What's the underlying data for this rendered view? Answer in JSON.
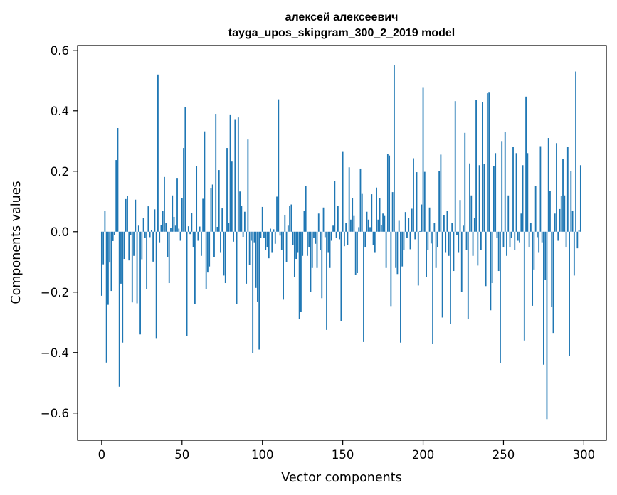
{
  "chart_data": {
    "type": "bar",
    "title_line1": "алексей алексеевич",
    "title_line2": "tayga_upos_skipgram_300_2_2019 model",
    "xlabel": "Vector components",
    "ylabel": "Components values",
    "xlim": [
      -15,
      314
    ],
    "ylim": [
      -0.69,
      0.616
    ],
    "xticks": [
      0,
      50,
      100,
      150,
      200,
      250,
      300
    ],
    "xtick_labels": [
      "0",
      "50",
      "100",
      "150",
      "200",
      "250",
      "300"
    ],
    "yticks": [
      -0.6,
      -0.4,
      -0.2,
      0.0,
      0.2,
      0.4,
      0.6
    ],
    "ytick_labels": [
      "−0.6",
      "−0.4",
      "−0.2",
      "0.0",
      "0.2",
      "0.4",
      "0.6"
    ],
    "bar_color": "#1f77b4",
    "values": [
      -0.212,
      -0.108,
      0.07,
      -0.433,
      -0.242,
      -0.102,
      -0.196,
      -0.031,
      -0.01,
      0.237,
      0.343,
      -0.513,
      -0.172,
      -0.367,
      -0.09,
      0.108,
      0.119,
      -0.095,
      -0.012,
      -0.234,
      -0.08,
      0.106,
      -0.237,
      0.02,
      -0.34,
      -0.091,
      0.045,
      -0.02,
      -0.189,
      0.084,
      -0.018,
      0.006,
      -0.099,
      0.074,
      -0.352,
      0.52,
      -0.035,
      0.022,
      0.07,
      0.181,
      0.03,
      -0.083,
      -0.17,
      0.012,
      0.12,
      0.049,
      0.02,
      0.178,
      0.01,
      -0.03,
      0.112,
      0.277,
      0.412,
      -0.345,
      0.018,
      -0.008,
      0.062,
      -0.05,
      -0.24,
      0.216,
      -0.03,
      0.017,
      -0.08,
      0.109,
      0.332,
      -0.19,
      -0.135,
      -0.115,
      0.143,
      0.156,
      -0.085,
      0.39,
      0.016,
      0.204,
      -0.07,
      0.077,
      -0.145,
      -0.17,
      0.277,
      0.03,
      0.388,
      0.232,
      -0.033,
      0.37,
      -0.24,
      0.378,
      0.133,
      0.085,
      -0.017,
      0.066,
      -0.172,
      0.305,
      -0.11,
      -0.03,
      -0.402,
      -0.035,
      -0.186,
      -0.231,
      -0.39,
      -0.02,
      0.082,
      -0.02,
      -0.06,
      -0.05,
      -0.088,
      0.01,
      -0.07,
      0.008,
      -0.04,
      0.116,
      0.438,
      -0.013,
      -0.06,
      -0.225,
      0.056,
      -0.1,
      0.02,
      0.085,
      0.09,
      -0.045,
      -0.15,
      -0.09,
      -0.07,
      -0.29,
      -0.265,
      -0.08,
      0.07,
      0.151,
      -0.08,
      -0.05,
      -0.2,
      -0.12,
      -0.02,
      -0.04,
      -0.12,
      0.06,
      -0.06,
      -0.22,
      0.08,
      -0.018,
      -0.325,
      -0.07,
      -0.12,
      -0.03,
      0.02,
      0.167,
      -0.02,
      0.085,
      -0.025,
      -0.295,
      0.264,
      -0.048,
      0.028,
      -0.045,
      0.213,
      0.04,
      0.111,
      0.052,
      -0.144,
      -0.137,
      0.015,
      0.209,
      0.125,
      -0.365,
      -0.05,
      0.066,
      0.04,
      0.015,
      0.124,
      -0.045,
      -0.07,
      0.146,
      0.04,
      0.11,
      0.021,
      0.06,
      0.052,
      -0.12,
      0.256,
      0.252,
      -0.246,
      0.131,
      0.552,
      -0.12,
      -0.14,
      0.036,
      -0.367,
      -0.115,
      -0.06,
      0.065,
      -0.02,
      0.045,
      -0.058,
      0.076,
      0.243,
      -0.025,
      0.197,
      -0.178,
      0.002,
      0.09,
      0.476,
      0.198,
      -0.15,
      -0.06,
      0.08,
      -0.039,
      -0.371,
      0.03,
      -0.12,
      -0.05,
      0.2,
      0.255,
      -0.284,
      0.055,
      -0.07,
      0.07,
      -0.08,
      -0.305,
      0.03,
      -0.13,
      0.432,
      -0.01,
      -0.07,
      0.105,
      -0.2,
      0.02,
      0.327,
      -0.06,
      -0.29,
      0.226,
      0.12,
      -0.08,
      0.045,
      0.437,
      -0.112,
      0.22,
      -0.06,
      0.43,
      0.224,
      -0.18,
      0.458,
      0.46,
      -0.26,
      -0.17,
      0.218,
      0.26,
      -0.02,
      -0.13,
      -0.435,
      0.3,
      -0.05,
      0.33,
      -0.08,
      0.12,
      -0.05,
      -0.02,
      0.28,
      -0.06,
      0.26,
      -0.03,
      -0.035,
      0.06,
      0.22,
      -0.36,
      0.447,
      0.26,
      -0.05,
      0.03,
      -0.245,
      -0.125,
      0.152,
      -0.018,
      -0.07,
      0.283,
      -0.035,
      -0.44,
      -0.16,
      -0.62,
      0.31,
      0.135,
      -0.25,
      -0.335,
      0.06,
      0.293,
      -0.03,
      0.075,
      0.119,
      0.24,
      0.12,
      -0.05,
      0.28,
      -0.41,
      0.2,
      0.07,
      -0.145,
      0.53,
      -0.055,
      0.005,
      0.22
    ]
  }
}
